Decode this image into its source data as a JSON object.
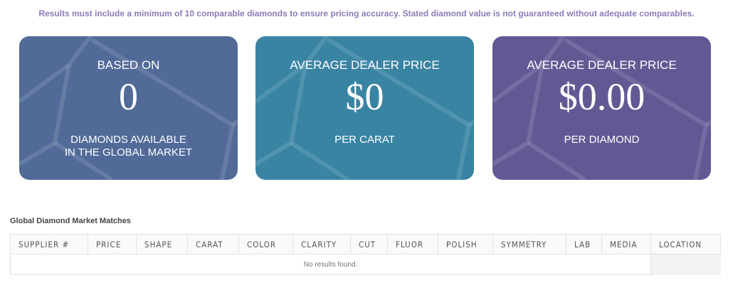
{
  "notice": "Results must include a minimum of 10 comparable diamonds to ensure pricing accuracy. Stated diamond value is not guaranteed without adequate comparables.",
  "cards": [
    {
      "top": "BASED ON",
      "value": "0",
      "bottom1": "DIAMONDS AVAILABLE",
      "bottom2": "IN THE GLOBAL MARKET",
      "color": "#516a98"
    },
    {
      "top": "AVERAGE DEALER PRICE",
      "value": "$0",
      "bottom1": "PER CARAT",
      "bottom2": "",
      "color": "#3a84a3"
    },
    {
      "top": "AVERAGE DEALER PRICE",
      "value": "$0.00",
      "bottom1": "PER DIAMOND",
      "bottom2": "",
      "color": "#645894"
    }
  ],
  "table": {
    "title": "Global Diamond Market Matches",
    "columns": [
      "SUPPLIER #",
      "PRICE",
      "SHAPE",
      "CARAT",
      "COLOR",
      "CLARITY",
      "CUT",
      "FLUOR",
      "POLISH",
      "SYMMETRY",
      "LAB",
      "MEDIA",
      "LOCATION"
    ],
    "empty": "No results found."
  }
}
